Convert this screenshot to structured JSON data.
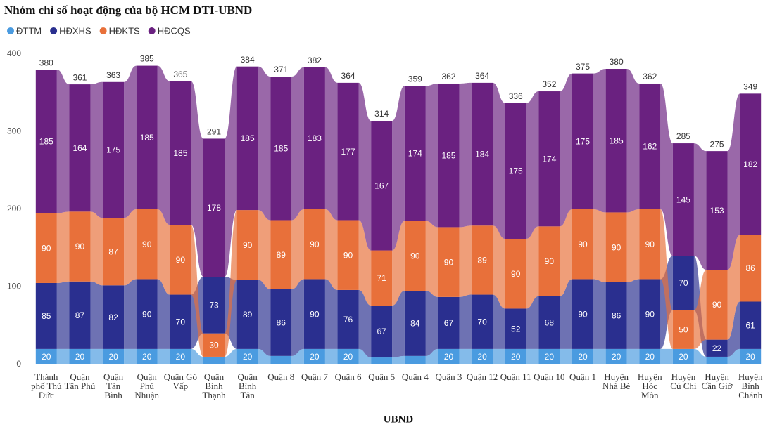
{
  "chart_data": {
    "type": "ribbon",
    "title": "Nhóm chỉ số hoạt động của bộ HCM DTI-UBND",
    "x_label": "UBND",
    "legend": "top-left",
    "categories": [
      "Thành phố Thủ Đức",
      "Quận Tân Phú",
      "Quận Tân Bình",
      "Quận Phú Nhuận",
      "Quận Gò Vấp",
      "Quận Bình Thạnh",
      "Quận Bình Tân",
      "Quận 8",
      "Quận 7",
      "Quận 6",
      "Quận 5",
      "Quận 4",
      "Quận 3",
      "Quận 12",
      "Quận 11",
      "Quận 10",
      "Quận 1",
      "Huyện Nhà Bè",
      "Huyện Hóc Môn",
      "Huyện Củ Chi",
      "Huyện Cần Giờ",
      "Huyện Bình Chánh"
    ],
    "series": [
      {
        "name": "ĐTTM",
        "color": "#4a9be0",
        "values": [
          20,
          20,
          20,
          20,
          20,
          10,
          20,
          11,
          20,
          20,
          9,
          11,
          20,
          20,
          20,
          20,
          20,
          20,
          20,
          20,
          10,
          20
        ],
        "value_labels": [
          "20",
          "20",
          "20",
          "20",
          "20",
          null,
          "20",
          null,
          "20",
          "20",
          null,
          null,
          "20",
          "20",
          "20",
          "20",
          "20",
          "20",
          "20",
          "20",
          null,
          "20"
        ]
      },
      {
        "name": "HĐXHS",
        "color": "#2a2f8f",
        "values": [
          85,
          87,
          82,
          90,
          70,
          73,
          89,
          86,
          90,
          76,
          67,
          84,
          67,
          70,
          52,
          68,
          90,
          86,
          90,
          70,
          22,
          61
        ]
      },
      {
        "name": "HĐKTS",
        "color": "#e8703a",
        "values": [
          90,
          90,
          87,
          90,
          90,
          30,
          90,
          89,
          90,
          90,
          71,
          90,
          90,
          89,
          90,
          90,
          90,
          90,
          90,
          50,
          90,
          86
        ]
      },
      {
        "name": "HĐCQS",
        "color": "#6a2180",
        "values": [
          185,
          164,
          175,
          185,
          185,
          178,
          185,
          185,
          183,
          177,
          167,
          174,
          185,
          184,
          175,
          174,
          175,
          185,
          162,
          145,
          153,
          182
        ]
      }
    ],
    "totals": [
      380,
      361,
      363,
      385,
      365,
      291,
      384,
      371,
      382,
      364,
      314,
      359,
      362,
      364,
      336,
      352,
      375,
      380,
      362,
      285,
      275,
      349
    ],
    "ylim": [
      0,
      400
    ],
    "yticks": [
      0,
      100,
      200,
      300,
      400
    ],
    "grid": false
  }
}
